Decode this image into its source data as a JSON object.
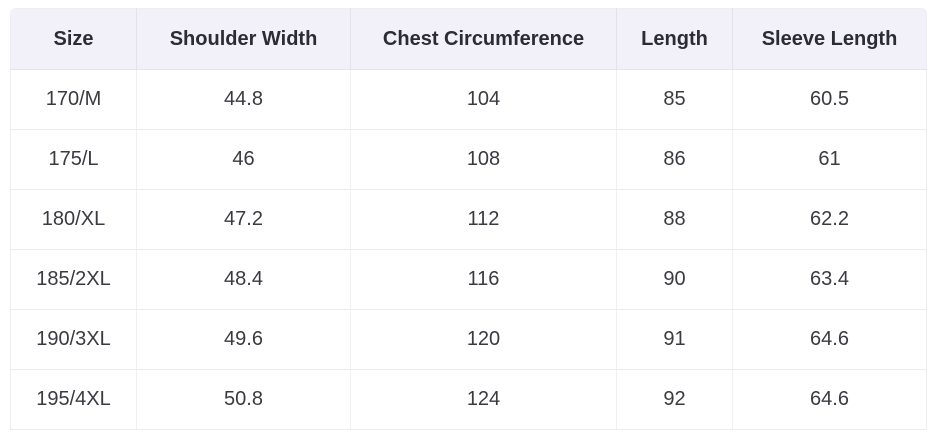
{
  "table": {
    "columns": [
      "Size",
      "Shoulder Width",
      "Chest Circumference",
      "Length",
      "Sleeve Length"
    ],
    "rows": [
      [
        "170/M",
        "44.8",
        "104",
        "85",
        "60.5"
      ],
      [
        "175/L",
        "46",
        "108",
        "86",
        "61"
      ],
      [
        "180/XL",
        "47.2",
        "112",
        "88",
        "62.2"
      ],
      [
        "185/2XL",
        "48.4",
        "116",
        "90",
        "63.4"
      ],
      [
        "190/3XL",
        "49.6",
        "120",
        "91",
        "64.6"
      ],
      [
        "195/4XL",
        "50.8",
        "124",
        "92",
        "64.6"
      ]
    ]
  },
  "colors": {
    "header_bg": "#f2f1f9",
    "border": "#ebebf0",
    "header_text": "#2c2c33",
    "body_text": "#3a3a40",
    "page_bg": "#ffffff"
  }
}
